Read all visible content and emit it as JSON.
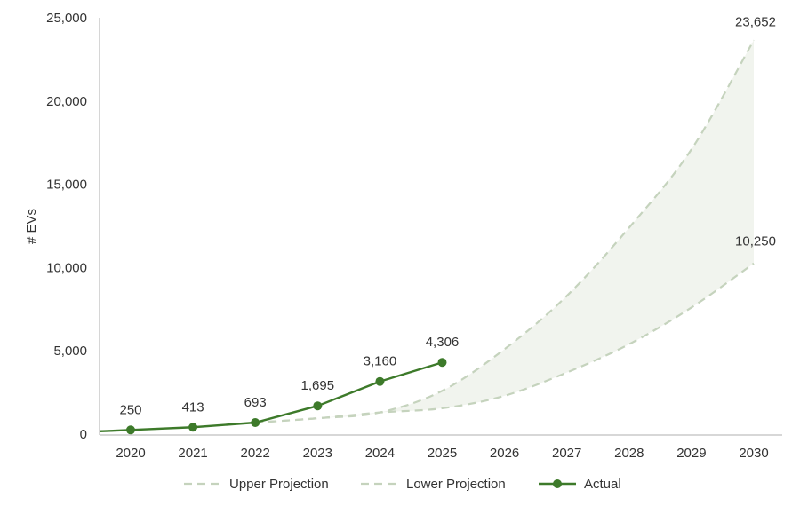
{
  "chart_data": {
    "type": "line",
    "title": "",
    "xlabel": "",
    "ylabel": "# EVs",
    "ylim": [
      0,
      25000
    ],
    "yticks": [
      "0",
      "5,000",
      "10,000",
      "15,000",
      "20,000",
      "25,000"
    ],
    "ytick_values": [
      0,
      5000,
      10000,
      15000,
      20000,
      25000
    ],
    "categories": [
      "2020",
      "2021",
      "2022",
      "2023",
      "2024",
      "2025",
      "2026",
      "2027",
      "2028",
      "2029",
      "2030"
    ],
    "grid": false,
    "legend_position": "bottom",
    "series": [
      {
        "name": "Upper Projection",
        "style": "dashed",
        "color": "#c5d3bd",
        "values": [
          null,
          null,
          693,
          950,
          1300,
          2600,
          5100,
          8300,
          12400,
          17100,
          23652
        ]
      },
      {
        "name": "Lower Projection",
        "style": "dashed",
        "color": "#c5d3bd",
        "values": [
          null,
          null,
          693,
          950,
          1300,
          1550,
          2300,
          3700,
          5400,
          7600,
          10250
        ]
      },
      {
        "name": "Actual",
        "style": "solid-markers",
        "color": "#3d7a2a",
        "values": [
          250,
          413,
          693,
          1695,
          3160,
          4306,
          null,
          null,
          null,
          null,
          null
        ]
      }
    ],
    "data_labels": [
      {
        "series": "Actual",
        "index": 0,
        "text": "250"
      },
      {
        "series": "Actual",
        "index": 1,
        "text": "413"
      },
      {
        "series": "Actual",
        "index": 2,
        "text": "693"
      },
      {
        "series": "Actual",
        "index": 3,
        "text": "1,695"
      },
      {
        "series": "Actual",
        "index": 4,
        "text": "3,160"
      },
      {
        "series": "Actual",
        "index": 5,
        "text": "4,306"
      },
      {
        "series": "Upper Projection",
        "index": 10,
        "text": "23,652"
      },
      {
        "series": "Lower Projection",
        "index": 10,
        "text": "10,250"
      }
    ],
    "band_color": "#f1f4ee"
  }
}
